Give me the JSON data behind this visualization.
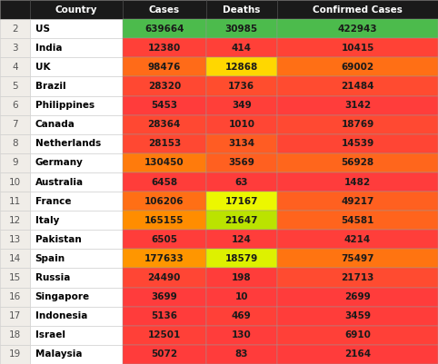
{
  "countries": [
    "US",
    "India",
    "UK",
    "Brazil",
    "Philippines",
    "Canada",
    "Netherlands",
    "Germany",
    "Australia",
    "France",
    "Italy",
    "Pakistan",
    "Spain",
    "Russia",
    "Singapore",
    "Indonesia",
    "Israel",
    "Malaysia"
  ],
  "cases": [
    639664,
    12380,
    98476,
    28320,
    5453,
    28364,
    28153,
    130450,
    6458,
    106206,
    165155,
    6505,
    177633,
    24490,
    3699,
    5136,
    12501,
    5072
  ],
  "deaths": [
    30985,
    414,
    12868,
    1736,
    349,
    1010,
    3134,
    3569,
    63,
    17167,
    21647,
    124,
    18579,
    198,
    10,
    469,
    130,
    83
  ],
  "confirmed": [
    422943,
    10415,
    69002,
    21484,
    3142,
    18769,
    14539,
    56928,
    1482,
    49217,
    54581,
    4214,
    75497,
    21713,
    2699,
    3459,
    6910,
    2164
  ],
  "header_bg": "#1a1a1a",
  "header_fg": "#ffffff",
  "row_num_bg": "#f0ede8",
  "country_bg": "#ffffff",
  "title": "Country",
  "col1": "Cases",
  "col2": "Deaths",
  "col3": "Confirmed Cases"
}
